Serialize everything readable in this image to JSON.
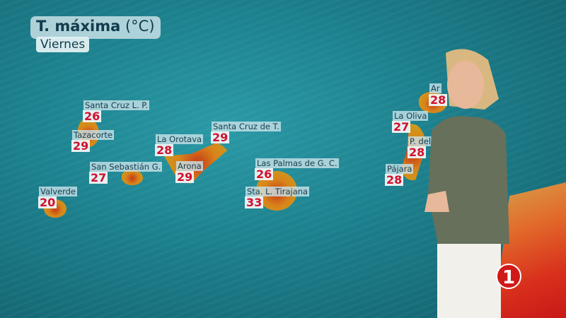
{
  "header": {
    "title_bold": "T. máxima",
    "title_unit": "(°C)",
    "day": "Viernes"
  },
  "cities": [
    {
      "name": "Santa Cruz  L. P.",
      "temp": "26"
    },
    {
      "name": "Tazacorte",
      "temp": "29"
    },
    {
      "name": "San Sebastián G.",
      "temp": "27"
    },
    {
      "name": "Valverde",
      "temp": "20"
    },
    {
      "name": "La Orotava",
      "temp": "28"
    },
    {
      "name": "Santa Cruz de T.",
      "temp": "29"
    },
    {
      "name": "Arona",
      "temp": "29"
    },
    {
      "name": "Las Palmas de G. C.",
      "temp": "26"
    },
    {
      "name": "Sta. L. Tirajana",
      "temp": "33"
    },
    {
      "name": "Ar",
      "temp": "28"
    },
    {
      "name": "La Oliva",
      "temp": "27"
    },
    {
      "name": "P. del",
      "temp": "28"
    },
    {
      "name": "Pájara",
      "temp": "28"
    }
  ],
  "logo": {
    "text": "1",
    "color": "#d01a1a"
  },
  "colors": {
    "temp_text": "#d01030",
    "sea": "#1c7f8c"
  }
}
